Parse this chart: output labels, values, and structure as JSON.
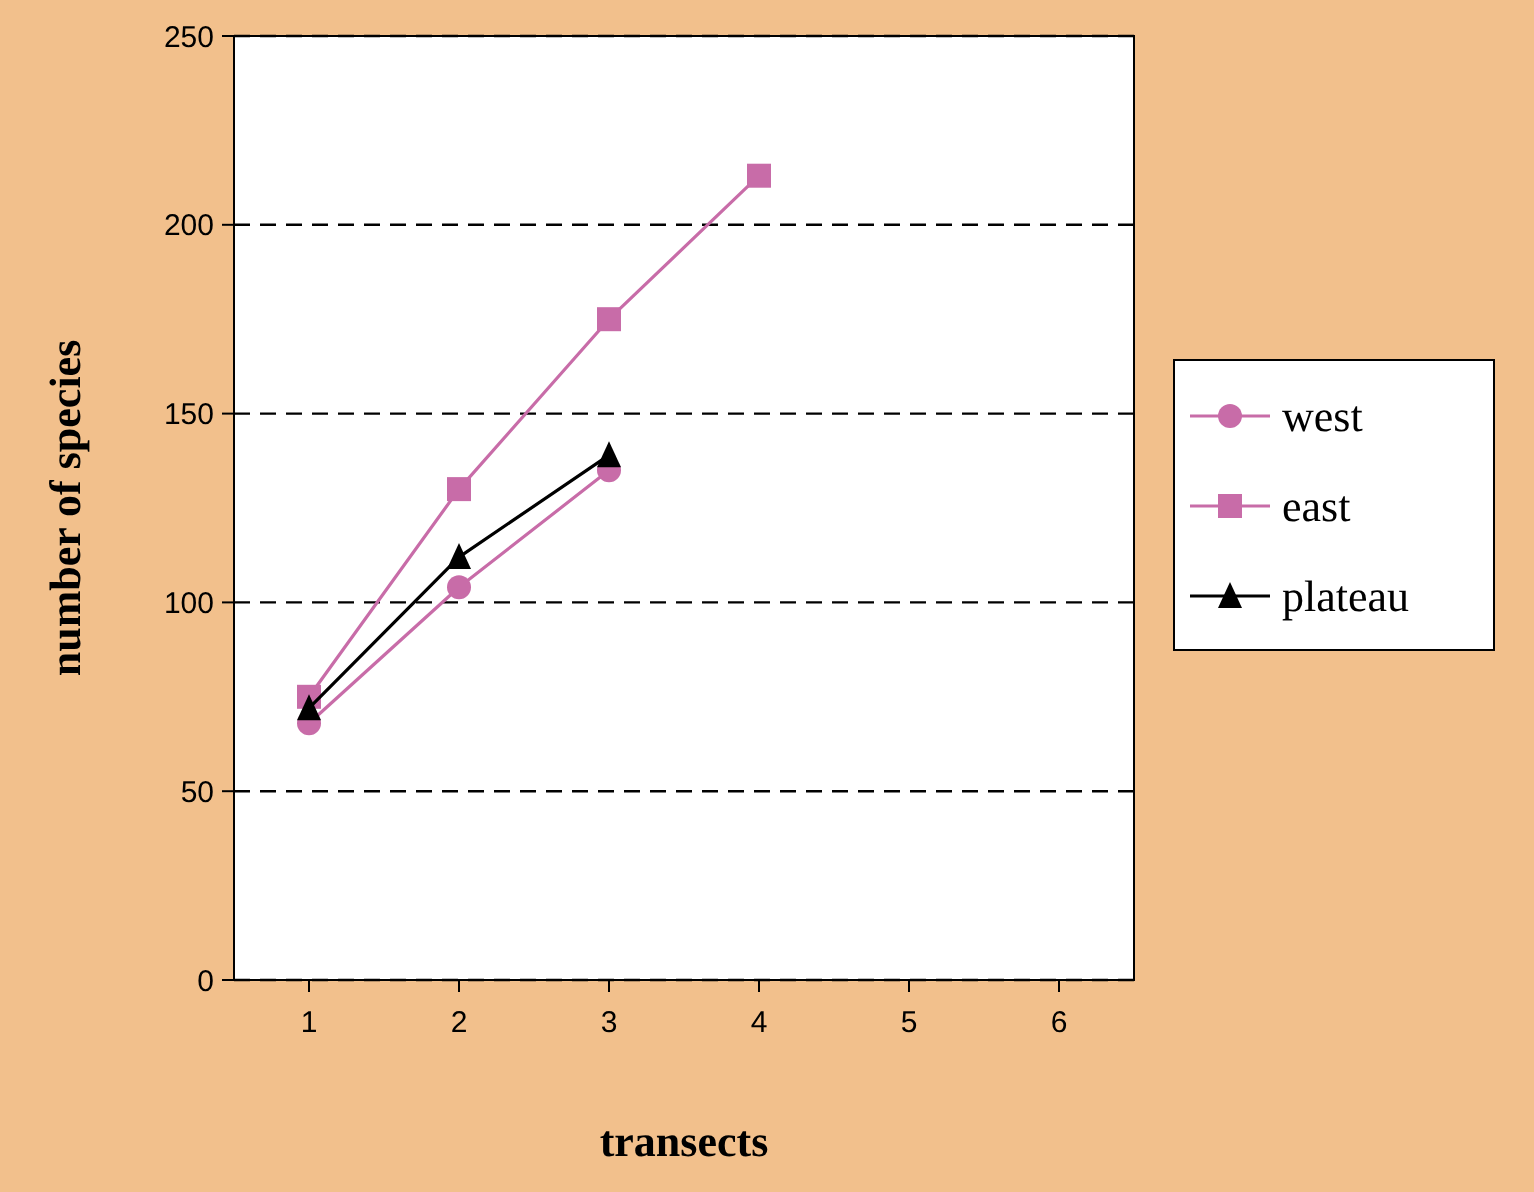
{
  "chart_data": {
    "type": "line",
    "xlabel": "transects",
    "ylabel": "number of species",
    "x": [
      1,
      2,
      3,
      4
    ],
    "series": [
      {
        "name": "west",
        "color": "#c86ca8",
        "values": [
          68,
          104,
          135,
          null
        ],
        "marker": "circle"
      },
      {
        "name": "east",
        "color": "#c86ca8",
        "values": [
          75,
          130,
          175,
          213
        ],
        "marker": "square"
      },
      {
        "name": "plateau",
        "color": "#000000",
        "values": [
          72,
          112,
          139,
          null
        ],
        "marker": "triangle"
      }
    ],
    "xlim": [
      0.5,
      6.5
    ],
    "xticks": [
      1,
      2,
      3,
      4,
      5,
      6
    ],
    "ylim": [
      0,
      250
    ],
    "yticks": [
      0,
      50,
      100,
      150,
      200,
      250
    ],
    "grid": "y",
    "legend": "right",
    "line_style": "solid"
  }
}
